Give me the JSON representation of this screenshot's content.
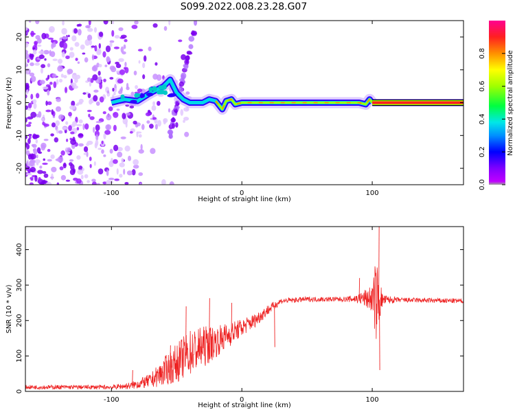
{
  "title": "S099.2022.008.23.28.G07",
  "colors": {
    "snr_line": "#ee2222",
    "frequency_line": "#000000",
    "colormap": [
      "#a0a0a0",
      "#a000ff",
      "#5000ff",
      "#0000ff",
      "#0080ff",
      "#00e0e0",
      "#00ff60",
      "#80ff00",
      "#ffff00",
      "#ffa000",
      "#ff3000",
      "#ff0050",
      "#ff0090"
    ]
  },
  "chart_data": [
    {
      "type": "heatmap",
      "xlabel": "Height of straight line (km)",
      "ylabel": "Frequency (Hz)",
      "xlim": [
        -166,
        170
      ],
      "ylim": [
        -25,
        25
      ],
      "xticks": [
        {
          "v": -100,
          "label": "-100"
        },
        {
          "v": 0,
          "label": "0"
        },
        {
          "v": 100,
          "label": "100"
        }
      ],
      "yticks": [
        {
          "v": -20,
          "label": "-20"
        },
        {
          "v": -10,
          "label": "-10"
        },
        {
          "v": 0,
          "label": "0"
        },
        {
          "v": 10,
          "label": "10"
        },
        {
          "v": 20,
          "label": "20"
        }
      ],
      "colorbar": {
        "label": "Normalized spectral amplitude",
        "range": [
          0,
          1
        ],
        "ticks": [
          {
            "v": 0,
            "label": "0.0"
          },
          {
            "v": 0.2,
            "label": "0.2"
          },
          {
            "v": 0.4,
            "label": "0.4"
          },
          {
            "v": 0.6,
            "label": "0.6"
          },
          {
            "v": 0.8,
            "label": "0.8"
          }
        ]
      },
      "frequency_trace": [
        [
          -100,
          0
        ],
        [
          -90,
          1
        ],
        [
          -80,
          0.5
        ],
        [
          -70,
          3
        ],
        [
          -60,
          5
        ],
        [
          -55,
          7
        ],
        [
          -50,
          3
        ],
        [
          -45,
          1
        ],
        [
          -40,
          0
        ],
        [
          -30,
          0
        ],
        [
          -25,
          1
        ],
        [
          -20,
          0.5
        ],
        [
          -15,
          -2
        ],
        [
          -12,
          0.5
        ],
        [
          -8,
          1
        ],
        [
          -5,
          -0.5
        ],
        [
          0,
          0
        ],
        [
          10,
          0
        ],
        [
          20,
          0
        ],
        [
          40,
          0
        ],
        [
          60,
          0
        ],
        [
          80,
          0
        ],
        [
          90,
          0
        ],
        [
          95,
          -0.5
        ],
        [
          98,
          1
        ],
        [
          100,
          0
        ]
      ],
      "reference_line": {
        "x_start": 100,
        "x_end": 170,
        "y": 0
      },
      "noise_region": {
        "x_range": [
          -166,
          -40
        ],
        "y_range": [
          -25,
          25
        ]
      },
      "rising_branch": {
        "x_range": [
          -55,
          -35
        ],
        "y_range": [
          -10,
          25
        ]
      }
    },
    {
      "type": "line",
      "xlabel": "Height of straight line (km)",
      "ylabel": "SNR (10 * v/v)",
      "xlim": [
        -166,
        170
      ],
      "ylim": [
        0,
        465
      ],
      "xticks": [
        {
          "v": -100,
          "label": "-100"
        },
        {
          "v": 0,
          "label": "0"
        },
        {
          "v": 100,
          "label": "100"
        }
      ],
      "yticks": [
        {
          "v": 0,
          "label": "0"
        },
        {
          "v": 100,
          "label": "100"
        },
        {
          "v": 200,
          "label": "200"
        },
        {
          "v": 300,
          "label": "300"
        },
        {
          "v": 400,
          "label": "400"
        }
      ],
      "series": [
        {
          "color": "#ee2222",
          "envelope": [
            {
              "x": -166,
              "y": 12,
              "n": 6
            },
            {
              "x": -100,
              "y": 12,
              "n": 6
            },
            {
              "x": -85,
              "y": 16,
              "n": 10
            },
            {
              "x": -70,
              "y": 30,
              "n": 20
            },
            {
              "x": -60,
              "y": 55,
              "n": 40
            },
            {
              "x": -50,
              "y": 80,
              "n": 55
            },
            {
              "x": -40,
              "y": 110,
              "n": 65
            },
            {
              "x": -30,
              "y": 125,
              "n": 60
            },
            {
              "x": -20,
              "y": 140,
              "n": 45
            },
            {
              "x": -10,
              "y": 160,
              "n": 35
            },
            {
              "x": 0,
              "y": 180,
              "n": 25
            },
            {
              "x": 10,
              "y": 200,
              "n": 20
            },
            {
              "x": 20,
              "y": 230,
              "n": 15
            },
            {
              "x": 30,
              "y": 255,
              "n": 8
            },
            {
              "x": 50,
              "y": 260,
              "n": 7
            },
            {
              "x": 80,
              "y": 260,
              "n": 7
            },
            {
              "x": 90,
              "y": 262,
              "n": 15
            },
            {
              "x": 100,
              "y": 262,
              "n": 40
            },
            {
              "x": 103,
              "y": 260,
              "n": 120
            },
            {
              "x": 108,
              "y": 258,
              "n": 15
            },
            {
              "x": 120,
              "y": 258,
              "n": 7
            },
            {
              "x": 170,
              "y": 255,
              "n": 7
            }
          ],
          "peaks": [
            {
              "x": -84,
              "y": 60
            },
            {
              "x": -55,
              "y": 130
            },
            {
              "x": -43,
              "y": 240
            },
            {
              "x": -25,
              "y": 263
            },
            {
              "x": -8,
              "y": 250
            },
            {
              "x": 25,
              "y": 125
            },
            {
              "x": 90,
              "y": 320
            },
            {
              "x": 105,
              "y": 465
            },
            {
              "x": 105.5,
              "y": 60
            }
          ]
        }
      ]
    }
  ]
}
